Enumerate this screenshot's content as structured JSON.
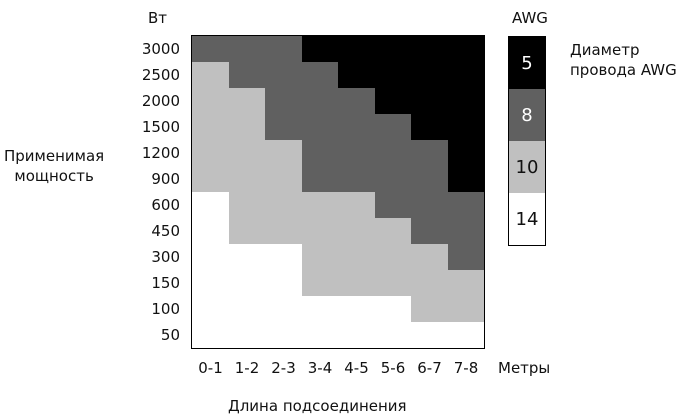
{
  "chart_data": {
    "type": "heatmap",
    "y_unit_label": "Вт",
    "ylabel": "Применимая\nмощность",
    "xlabel": "Длина подсоединения",
    "x_unit_label": "Метры",
    "y_ticks": [
      "3000",
      "2500",
      "2000",
      "1500",
      "1200",
      "900",
      "600",
      "450",
      "300",
      "150",
      "100",
      "50"
    ],
    "x_ticks": [
      "0-1",
      "1-2",
      "2-3",
      "3-4",
      "4-5",
      "5-6",
      "6-7",
      "7-8"
    ],
    "legend_title": "AWG",
    "legend_caption": "Диаметр\nпровода AWG",
    "legend": [
      {
        "awg": "5",
        "color": "#000000",
        "text_color": "#ffffff"
      },
      {
        "awg": "8",
        "color": "#606060",
        "text_color": "#ffffff"
      },
      {
        "awg": "10",
        "color": "#c0c0c0",
        "text_color": "#111111"
      },
      {
        "awg": "14",
        "color": "#ffffff",
        "text_color": "#111111"
      }
    ],
    "matrix_awg": [
      [
        "8",
        "8",
        "8",
        "5",
        "5",
        "5",
        "5",
        "5"
      ],
      [
        "10",
        "8",
        "8",
        "8",
        "5",
        "5",
        "5",
        "5"
      ],
      [
        "10",
        "10",
        "8",
        "8",
        "8",
        "5",
        "5",
        "5"
      ],
      [
        "10",
        "10",
        "8",
        "8",
        "8",
        "8",
        "5",
        "5"
      ],
      [
        "10",
        "10",
        "10",
        "8",
        "8",
        "8",
        "8",
        "5"
      ],
      [
        "10",
        "10",
        "10",
        "8",
        "8",
        "8",
        "8",
        "5"
      ],
      [
        "14",
        "10",
        "10",
        "10",
        "10",
        "8",
        "8",
        "8"
      ],
      [
        "14",
        "10",
        "10",
        "10",
        "10",
        "10",
        "8",
        "8"
      ],
      [
        "14",
        "14",
        "14",
        "10",
        "10",
        "10",
        "10",
        "8"
      ],
      [
        "14",
        "14",
        "14",
        "10",
        "10",
        "10",
        "10",
        "10"
      ],
      [
        "14",
        "14",
        "14",
        "14",
        "14",
        "14",
        "10",
        "10"
      ],
      [
        "14",
        "14",
        "14",
        "14",
        "14",
        "14",
        "14",
        "14"
      ]
    ]
  }
}
